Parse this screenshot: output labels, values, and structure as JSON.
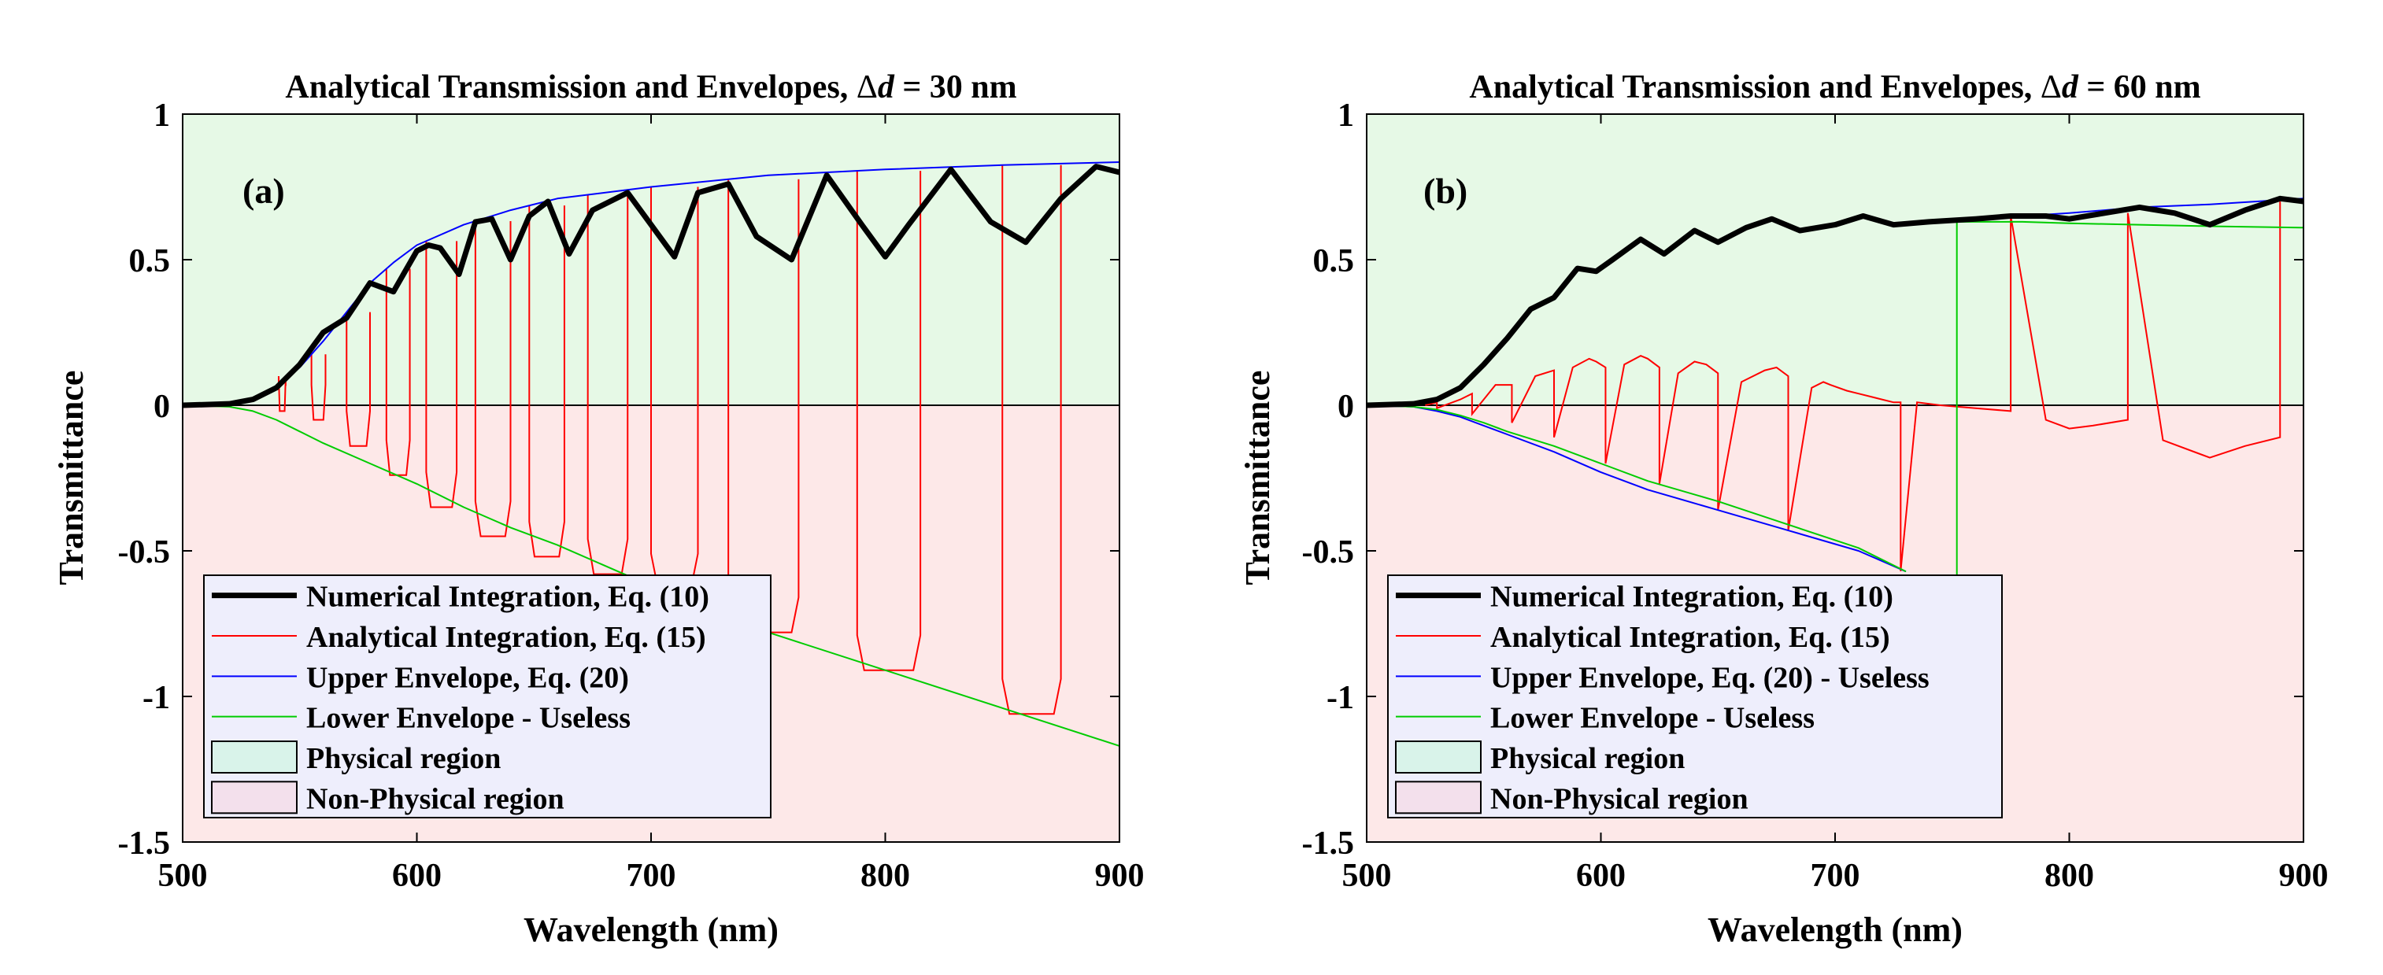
{
  "chart_data": [
    {
      "type": "line",
      "panel_label": "(a)",
      "title_prefix": "Analytical Transmission and Envelopes, ",
      "title_delta": "Δ",
      "title_var": "d",
      "title_suffix": " = 30 nm",
      "xlabel": "Wavelength (nm)",
      "ylabel": "Transmittance",
      "xlim": [
        500,
        900
      ],
      "ylim": [
        -1.5,
        1
      ],
      "xticks": [
        500,
        600,
        700,
        800,
        900
      ],
      "yticks": [
        1,
        0.5,
        0,
        -0.5,
        -1,
        -1.5
      ],
      "ytick_labels": [
        "1",
        "0.5",
        "0",
        "-0.5",
        "-1",
        "-1.5"
      ],
      "legend_position": "bottom-left",
      "regions": [
        {
          "name": "Physical region",
          "ymin": 0,
          "ymax": 1,
          "color": "#e6f9e6"
        },
        {
          "name": "Non-Physical region",
          "ymin": -1.5,
          "ymax": 0,
          "color": "#fde8e8"
        }
      ],
      "legend": [
        {
          "label": "Numerical Integration, Eq. (10)",
          "kind": "line",
          "color": "#000000",
          "width": 7
        },
        {
          "label": "Analytical Integration, Eq. (15)",
          "kind": "line",
          "color": "#ff0000",
          "width": 2
        },
        {
          "label": "Upper Envelope, Eq. (20)",
          "kind": "line",
          "color": "#0000ff",
          "width": 2
        },
        {
          "label": "Lower Envelope - Useless",
          "kind": "line",
          "color": "#00cc00",
          "width": 2
        },
        {
          "label": "Physical region",
          "kind": "patch",
          "color": "#d9f3ea"
        },
        {
          "label": "Non-Physical region",
          "kind": "patch",
          "color": "#f3e0ec"
        }
      ],
      "series": [
        {
          "name": "Upper Envelope, Eq. (20)",
          "color": "#0000ff",
          "x": [
            500,
            520,
            530,
            540,
            550,
            560,
            570,
            580,
            590,
            600,
            620,
            640,
            660,
            700,
            750,
            800,
            850,
            900
          ],
          "y": [
            0,
            0.005,
            0.02,
            0.06,
            0.13,
            0.22,
            0.32,
            0.42,
            0.49,
            0.55,
            0.62,
            0.67,
            0.71,
            0.75,
            0.79,
            0.81,
            0.825,
            0.835
          ]
        },
        {
          "name": "Lower Envelope - Useless",
          "color": "#00cc00",
          "x": [
            500,
            520,
            530,
            540,
            550,
            560,
            580,
            600,
            620,
            640,
            660,
            700,
            750,
            800,
            850,
            900
          ],
          "y": [
            0,
            -0.005,
            -0.02,
            -0.05,
            -0.09,
            -0.13,
            -0.2,
            -0.27,
            -0.35,
            -0.42,
            -0.48,
            -0.62,
            -0.78,
            -0.91,
            -1.04,
            -1.17
          ]
        },
        {
          "name": "Numerical Integration, Eq. (10)",
          "color": "#000000",
          "x": [
            500,
            520,
            530,
            540,
            550,
            560,
            570,
            580,
            590,
            600,
            605,
            610,
            618,
            625,
            632,
            640,
            648,
            656,
            665,
            675,
            690,
            700,
            710,
            720,
            733,
            745,
            760,
            775,
            790,
            800,
            810,
            828,
            845,
            860,
            875,
            890,
            900
          ],
          "y": [
            0,
            0.005,
            0.02,
            0.06,
            0.14,
            0.25,
            0.3,
            0.42,
            0.39,
            0.53,
            0.55,
            0.54,
            0.45,
            0.63,
            0.64,
            0.5,
            0.65,
            0.7,
            0.52,
            0.67,
            0.73,
            0.62,
            0.51,
            0.73,
            0.76,
            0.58,
            0.5,
            0.79,
            0.62,
            0.51,
            0.62,
            0.81,
            0.63,
            0.56,
            0.71,
            0.82,
            0.8
          ]
        }
      ],
      "analytical_spikes": [
        {
          "x1": 541,
          "x2": 544,
          "ymin": -0.02
        },
        {
          "x1": 555,
          "x2": 561,
          "ymin": -0.05
        },
        {
          "x1": 570,
          "x2": 580,
          "ymin": -0.14
        },
        {
          "x1": 587,
          "x2": 597,
          "ymin": -0.24
        },
        {
          "x1": 604,
          "x2": 617,
          "ymin": -0.35
        },
        {
          "x1": 625,
          "x2": 640,
          "ymin": -0.45
        },
        {
          "x1": 648,
          "x2": 663,
          "ymin": -0.52
        },
        {
          "x1": 673,
          "x2": 690,
          "ymin": -0.58
        },
        {
          "x1": 700,
          "x2": 720,
          "ymin": -0.63
        },
        {
          "x1": 733,
          "x2": 763,
          "ymin": -0.78
        },
        {
          "x1": 788,
          "x2": 815,
          "ymin": -0.91
        },
        {
          "x1": 850,
          "x2": 875,
          "ymin": -1.06
        }
      ]
    },
    {
      "type": "line",
      "panel_label": "(b)",
      "title_prefix": "Analytical Transmission and Envelopes, ",
      "title_delta": "Δ",
      "title_var": "d",
      "title_suffix": " = 60 nm",
      "xlabel": "Wavelength (nm)",
      "ylabel": "Transmittance",
      "xlim": [
        500,
        900
      ],
      "ylim": [
        -1.5,
        1
      ],
      "xticks": [
        500,
        600,
        700,
        800,
        900
      ],
      "yticks": [
        1,
        0.5,
        0,
        -0.5,
        -1,
        -1.5
      ],
      "ytick_labels": [
        "1",
        "0.5",
        "0",
        "-0.5",
        "-1",
        "-1.5"
      ],
      "legend_position": "bottom-left",
      "regions": [
        {
          "name": "Physical region",
          "ymin": 0,
          "ymax": 1,
          "color": "#e6f9e6"
        },
        {
          "name": "Non-Physical region",
          "ymin": -1.5,
          "ymax": 0,
          "color": "#fde8e8"
        }
      ],
      "legend": [
        {
          "label": "Numerical Integration, Eq. (10)",
          "kind": "line",
          "color": "#000000",
          "width": 7
        },
        {
          "label": "Analytical Integration, Eq. (15)",
          "kind": "line",
          "color": "#ff0000",
          "width": 2
        },
        {
          "label": "Upper Envelope, Eq. (20) - Useless",
          "kind": "line",
          "color": "#0000ff",
          "width": 2
        },
        {
          "label": "Lower Envelope - Useless",
          "kind": "line",
          "color": "#00cc00",
          "width": 2
        },
        {
          "label": "Physical region",
          "kind": "patch",
          "color": "#d9f3ea"
        },
        {
          "label": "Non-Physical region",
          "kind": "patch",
          "color": "#f3e0ec"
        }
      ],
      "series": [
        {
          "name": "Upper Envelope, Eq. (20) - Useless",
          "color": "#0000ff",
          "x": [
            500,
            520,
            530,
            540,
            550,
            560,
            580,
            600,
            620,
            650,
            680,
            710,
            730
          ],
          "y": [
            0,
            -0.005,
            -0.02,
            -0.04,
            -0.07,
            -0.1,
            -0.16,
            -0.23,
            -0.29,
            -0.36,
            -0.43,
            -0.5,
            -0.57
          ]
        },
        {
          "name": "Upper Envelope, Eq. (20) - Useless",
          "color": "#0000ff",
          "x": [
            752,
            780,
            800,
            830,
            860,
            900
          ],
          "y": [
            0.63,
            0.65,
            0.66,
            0.68,
            0.69,
            0.71
          ]
        },
        {
          "name": "Lower Envelope - Useless",
          "color": "#00cc00",
          "x": [
            500,
            520,
            530,
            540,
            550,
            560,
            580,
            600,
            620,
            650,
            680,
            710,
            730
          ],
          "y": [
            0,
            -0.005,
            -0.015,
            -0.035,
            -0.06,
            -0.09,
            -0.14,
            -0.2,
            -0.26,
            -0.33,
            -0.41,
            -0.49,
            -0.57
          ]
        },
        {
          "name": "Lower Envelope - Useless",
          "color": "#00cc00",
          "x": [
            752,
            780,
            800,
            830,
            860,
            900
          ],
          "y": [
            0.63,
            0.63,
            0.625,
            0.62,
            0.615,
            0.61
          ]
        },
        {
          "name": "Lower Envelope - Useless",
          "color": "#00cc00",
          "x": [
            752,
            752
          ],
          "y": [
            -0.58,
            0.63
          ]
        },
        {
          "name": "Numerical Integration, Eq. (10)",
          "color": "#000000",
          "x": [
            500,
            520,
            530,
            540,
            550,
            560,
            570,
            580,
            590,
            598,
            605,
            617,
            627,
            640,
            650,
            662,
            673,
            685,
            700,
            712,
            725,
            740,
            760,
            775,
            790,
            800,
            815,
            830,
            845,
            860,
            875,
            890,
            900
          ],
          "y": [
            0,
            0.005,
            0.02,
            0.06,
            0.14,
            0.23,
            0.33,
            0.37,
            0.47,
            0.46,
            0.5,
            0.57,
            0.52,
            0.6,
            0.56,
            0.61,
            0.64,
            0.6,
            0.62,
            0.65,
            0.62,
            0.63,
            0.64,
            0.65,
            0.65,
            0.64,
            0.66,
            0.68,
            0.66,
            0.62,
            0.67,
            0.71,
            0.7
          ]
        }
      ],
      "analytical_path": {
        "x": [
          525,
          530,
          530,
          540,
          545,
          545,
          555,
          562,
          562,
          572,
          580,
          580,
          588,
          595,
          598,
          602,
          602,
          610,
          617,
          620,
          625,
          625,
          633,
          640,
          645,
          650,
          650,
          660,
          670,
          675,
          680,
          680,
          690,
          695,
          698,
          705,
          710,
          715,
          720,
          725,
          728,
          728,
          735,
          745,
          760,
          775,
          775,
          790,
          800,
          810,
          825,
          825,
          840,
          860,
          875,
          890,
          890
        ],
        "y": [
          0,
          0.01,
          -0.01,
          0.02,
          0.04,
          -0.03,
          0.07,
          0.07,
          -0.06,
          0.1,
          0.12,
          -0.11,
          0.13,
          0.16,
          0.15,
          0.13,
          -0.2,
          0.14,
          0.17,
          0.16,
          0.13,
          -0.27,
          0.11,
          0.15,
          0.14,
          0.11,
          -0.36,
          0.08,
          0.12,
          0.13,
          0.1,
          -0.43,
          0.06,
          0.08,
          0.07,
          0.05,
          0.04,
          0.03,
          0.02,
          0.01,
          0.01,
          -0.57,
          0.01,
          0.0,
          -0.01,
          -0.02,
          0.65,
          -0.05,
          -0.08,
          -0.07,
          -0.05,
          0.66,
          -0.12,
          -0.18,
          -0.14,
          -0.11,
          0.7
        ]
      }
    }
  ]
}
